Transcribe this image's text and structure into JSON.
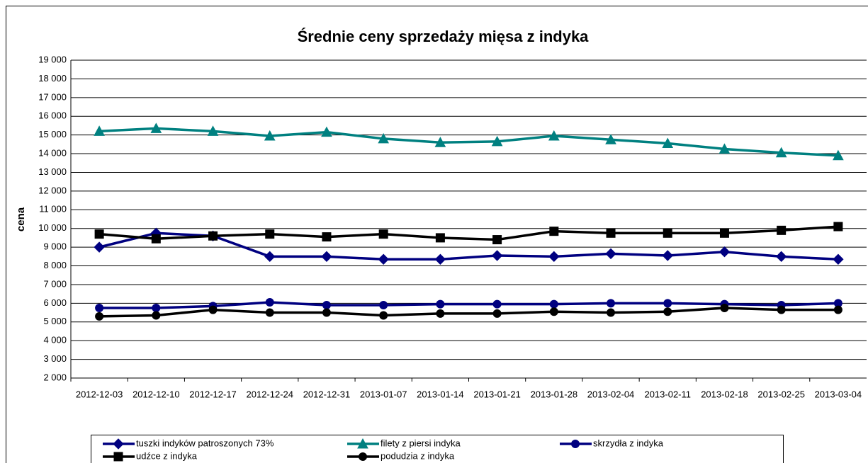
{
  "chart_data": {
    "type": "line",
    "title": "Średnie ceny sprzedaży mięsa z indyka",
    "y_label": "cena",
    "categories": [
      "2012-12-03",
      "2012-12-10",
      "2012-12-17",
      "2012-12-24",
      "2012-12-31",
      "2013-01-07",
      "2013-01-14",
      "2013-01-21",
      "2013-01-28",
      "2013-02-04",
      "2013-02-11",
      "2013-02-18",
      "2013-02-25",
      "2013-03-04"
    ],
    "ylim": [
      2000,
      19000
    ],
    "yticks": [
      {
        "value": 2000,
        "label": "2 000"
      },
      {
        "value": 3000,
        "label": "3 000"
      },
      {
        "value": 4000,
        "label": "4 000"
      },
      {
        "value": 5000,
        "label": "5 000"
      },
      {
        "value": 6000,
        "label": "6 000"
      },
      {
        "value": 7000,
        "label": "7 000"
      },
      {
        "value": 8000,
        "label": "8 000"
      },
      {
        "value": 9000,
        "label": "9 000"
      },
      {
        "value": 10000,
        "label": "10 000"
      },
      {
        "value": 11000,
        "label": "11 000"
      },
      {
        "value": 12000,
        "label": "12 000"
      },
      {
        "value": 13000,
        "label": "13 000"
      },
      {
        "value": 14000,
        "label": "14 000"
      },
      {
        "value": 15000,
        "label": "15 000"
      },
      {
        "value": 16000,
        "label": "16 000"
      },
      {
        "value": 17000,
        "label": "17 000"
      },
      {
        "value": 18000,
        "label": "18 000"
      },
      {
        "value": 19000,
        "label": "19 000"
      }
    ],
    "grid": true,
    "series": [
      {
        "name": "tuszki indyków  patroszonych 73%",
        "color": "#000080",
        "marker": "diamond",
        "values": [
          9000,
          9750,
          9600,
          8500,
          8500,
          8350,
          8350,
          8550,
          8500,
          8650,
          8550,
          8750,
          8500,
          8350
        ]
      },
      {
        "name": "filety z piersi indyka",
        "color": "#008080",
        "marker": "triangle",
        "values": [
          15200,
          15350,
          15200,
          14950,
          15150,
          14800,
          14600,
          14650,
          14950,
          14750,
          14550,
          14250,
          14050,
          13900
        ]
      },
      {
        "name": "skrzydła z indyka",
        "color": "#000080",
        "marker": "circle",
        "values": [
          5750,
          5750,
          5850,
          6050,
          5900,
          5900,
          5950,
          5950,
          5950,
          6000,
          6000,
          5950,
          5900,
          6000
        ]
      },
      {
        "name": "udźce z indyka",
        "color": "#000000",
        "marker": "square",
        "values": [
          9700,
          9450,
          9600,
          9700,
          9550,
          9700,
          9500,
          9400,
          9850,
          9750,
          9750,
          9750,
          9900,
          10100
        ]
      },
      {
        "name": "podudzia z indyka",
        "color": "#000000",
        "marker": "circle",
        "values": [
          5300,
          5350,
          5650,
          5500,
          5500,
          5350,
          5450,
          5450,
          5550,
          5500,
          5550,
          5750,
          5650,
          5650
        ]
      }
    ]
  }
}
